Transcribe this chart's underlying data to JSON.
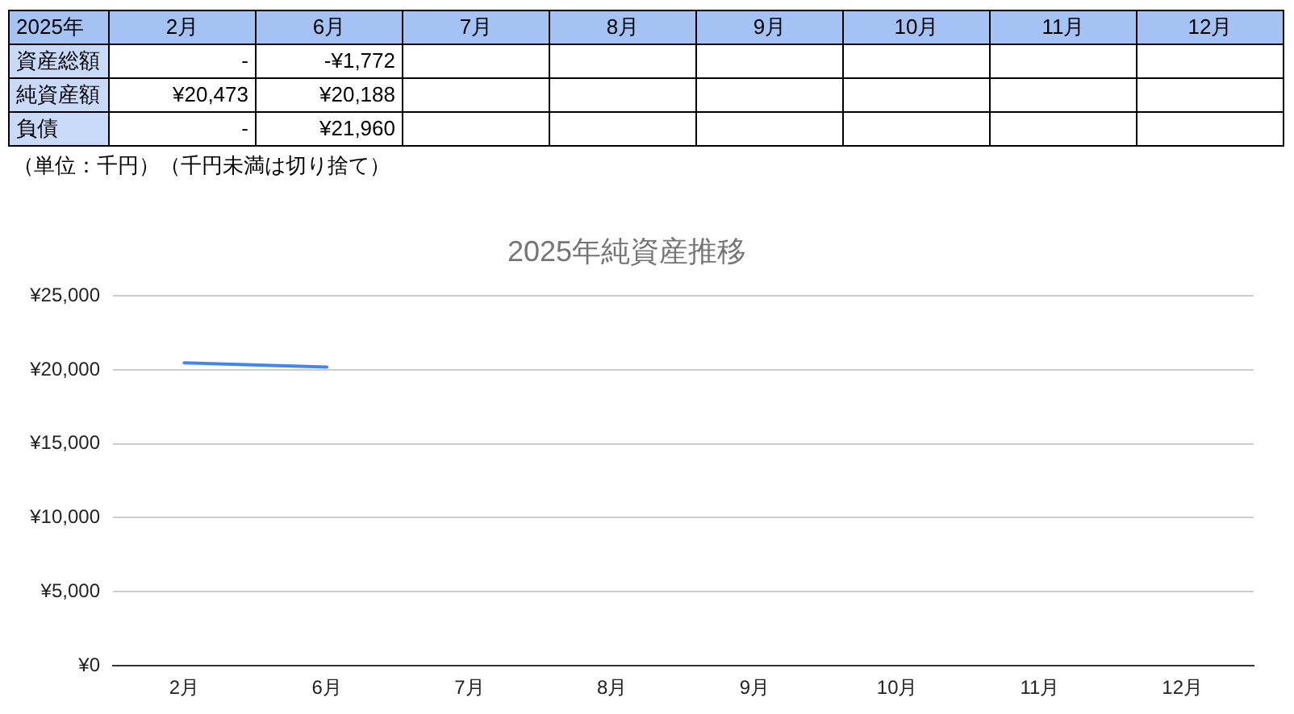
{
  "chart_data": [
    {
      "type": "heatmap",
      "title": "2025年",
      "categories": [
        "2月",
        "6月",
        "7月",
        "8月",
        "9月",
        "10月",
        "11月",
        "12月"
      ],
      "y_categories": [
        "資産総額",
        "純資産額",
        "負債"
      ],
      "cells": [
        [
          "-",
          "-¥1,772",
          null,
          null,
          null,
          null,
          null,
          null
        ],
        [
          "¥20,473",
          "¥20,188",
          null,
          null,
          null,
          null,
          null,
          null
        ],
        [
          "-",
          "¥21,960",
          null,
          null,
          null,
          null,
          null,
          null
        ]
      ],
      "annotations": [
        "（単位：千円）（千円未満は切り捨て）"
      ]
    },
    {
      "type": "line",
      "title": "2025年純資産推移",
      "categories": [
        "2月",
        "6月",
        "7月",
        "8月",
        "9月",
        "10月",
        "11月",
        "12月"
      ],
      "series": [
        {
          "color": "#4285f4",
          "values": [
            20473,
            20188,
            null,
            null,
            null,
            null,
            null,
            null
          ]
        }
      ],
      "ylim": [
        0,
        25000
      ],
      "yticks": [
        {
          "value": 0,
          "label": "¥0"
        },
        {
          "value": 5000,
          "label": "¥5,000"
        },
        {
          "value": 10000,
          "label": "¥10,000"
        },
        {
          "value": 15000,
          "label": "¥15,000"
        },
        {
          "value": 20000,
          "label": "¥20,000"
        },
        {
          "value": 25000,
          "label": "¥25,000"
        }
      ],
      "grid": "y"
    }
  ]
}
